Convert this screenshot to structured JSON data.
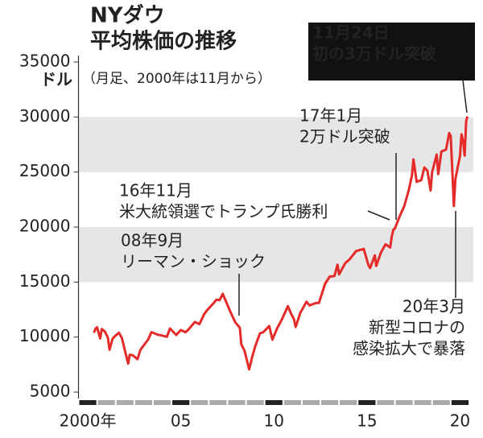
{
  "chart_data": {
    "type": "line",
    "title": [
      "NYダウ",
      "平均株価の推移"
    ],
    "subtitle": "（月足、2000年は11月から）",
    "ylabel": "ドル",
    "x": [
      2000.83,
      2000.92,
      2001.0,
      2001.17,
      2001.25,
      2001.42,
      2001.58,
      2001.67,
      2001.83,
      2001.92,
      2002.17,
      2002.33,
      2002.5,
      2002.67,
      2002.75,
      2002.92,
      2003.17,
      2003.33,
      2003.5,
      2003.75,
      2003.92,
      2004.25,
      2004.5,
      2004.75,
      2004.92,
      2005.25,
      2005.5,
      2005.75,
      2005.92,
      2006.25,
      2006.5,
      2006.75,
      2006.92,
      2007.25,
      2007.42,
      2007.58,
      2007.75,
      2007.92,
      2008.17,
      2008.42,
      2008.67,
      2008.75,
      2008.92,
      2009.17,
      2009.33,
      2009.5,
      2009.75,
      2009.92,
      2010.25,
      2010.42,
      2010.67,
      2010.92,
      2011.25,
      2011.42,
      2011.58,
      2011.67,
      2011.92,
      2012.25,
      2012.42,
      2012.75,
      2012.92,
      2013.25,
      2013.5,
      2013.75,
      2013.92,
      2014.0,
      2014.33,
      2014.58,
      2014.92,
      2015.33,
      2015.58,
      2015.67,
      2015.92,
      2016.0,
      2016.25,
      2016.5,
      2016.75,
      2016.83,
      2016.92,
      2017.0,
      2017.25,
      2017.5,
      2017.75,
      2017.92,
      2018.0,
      2018.17,
      2018.42,
      2018.58,
      2018.75,
      2018.92,
      2019.0,
      2019.25,
      2019.33,
      2019.5,
      2019.75,
      2019.92,
      2020.0,
      2020.08,
      2020.17,
      2020.25,
      2020.42,
      2020.5,
      2020.58,
      2020.67,
      2020.75,
      2020.83,
      2020.9
    ],
    "values": [
      10400,
      10787,
      10887,
      9878,
      10734,
      10502,
      9950,
      8847,
      9851,
      10021,
      10403,
      9925,
      8736,
      7592,
      8397,
      8341,
      7992,
      8850,
      9233,
      9801,
      10453,
      10225,
      10139,
      10027,
      10783,
      10192,
      10640,
      10440,
      10717,
      11367,
      11185,
      12080,
      12463,
      13062,
      13408,
      13357,
      13930,
      13264,
      12262,
      11350,
      10850,
      9325,
      8776,
      7062,
      8168,
      9171,
      10344,
      10428,
      11008,
      9774,
      10788,
      11578,
      12810,
      12143,
      11613,
      10913,
      12218,
      13213,
      12880,
      13096,
      13104,
      14840,
      15499,
      15546,
      16577,
      15699,
      16717,
      17098,
      17823,
      18011,
      16528,
      16285,
      17425,
      16466,
      17685,
      18432,
      18142,
      19124,
      19763,
      19864,
      20941,
      21891,
      23377,
      24719,
      26149,
      24103,
      24271,
      25415,
      25116,
      23327,
      24999,
      26593,
      24815,
      26864,
      27046,
      28538,
      28256,
      25409,
      21917,
      24345,
      25812,
      26428,
      28430,
      27782,
      26501,
      29638,
      30046
    ],
    "color": "#e52a2a",
    "xlim": [
      2000,
      2021
    ],
    "xticks": [
      {
        "value": 2000,
        "label": "2000年"
      },
      {
        "value": 2005,
        "label": "05"
      },
      {
        "value": 2010,
        "label": "10"
      },
      {
        "value": 2015,
        "label": "15"
      },
      {
        "value": 2020,
        "label": "20"
      }
    ],
    "ylim": [
      5000,
      35000
    ],
    "yticks": [
      5000,
      10000,
      15000,
      20000,
      25000,
      30000,
      35000
    ],
    "grid": true,
    "annotations": [
      {
        "lines": [
          "11月24日",
          "初の3万ドル突破"
        ]
      },
      {
        "lines": [
          "17年1月",
          "2万ドル突破"
        ]
      },
      {
        "lines": [
          "16年11月",
          "米大統領選でトランプ氏勝利"
        ]
      },
      {
        "lines": [
          "08年9月",
          "リーマン・ショック"
        ]
      },
      {
        "lines": [
          "20年3月",
          "新型コロナの",
          "感染拡大で暴落"
        ]
      }
    ]
  }
}
